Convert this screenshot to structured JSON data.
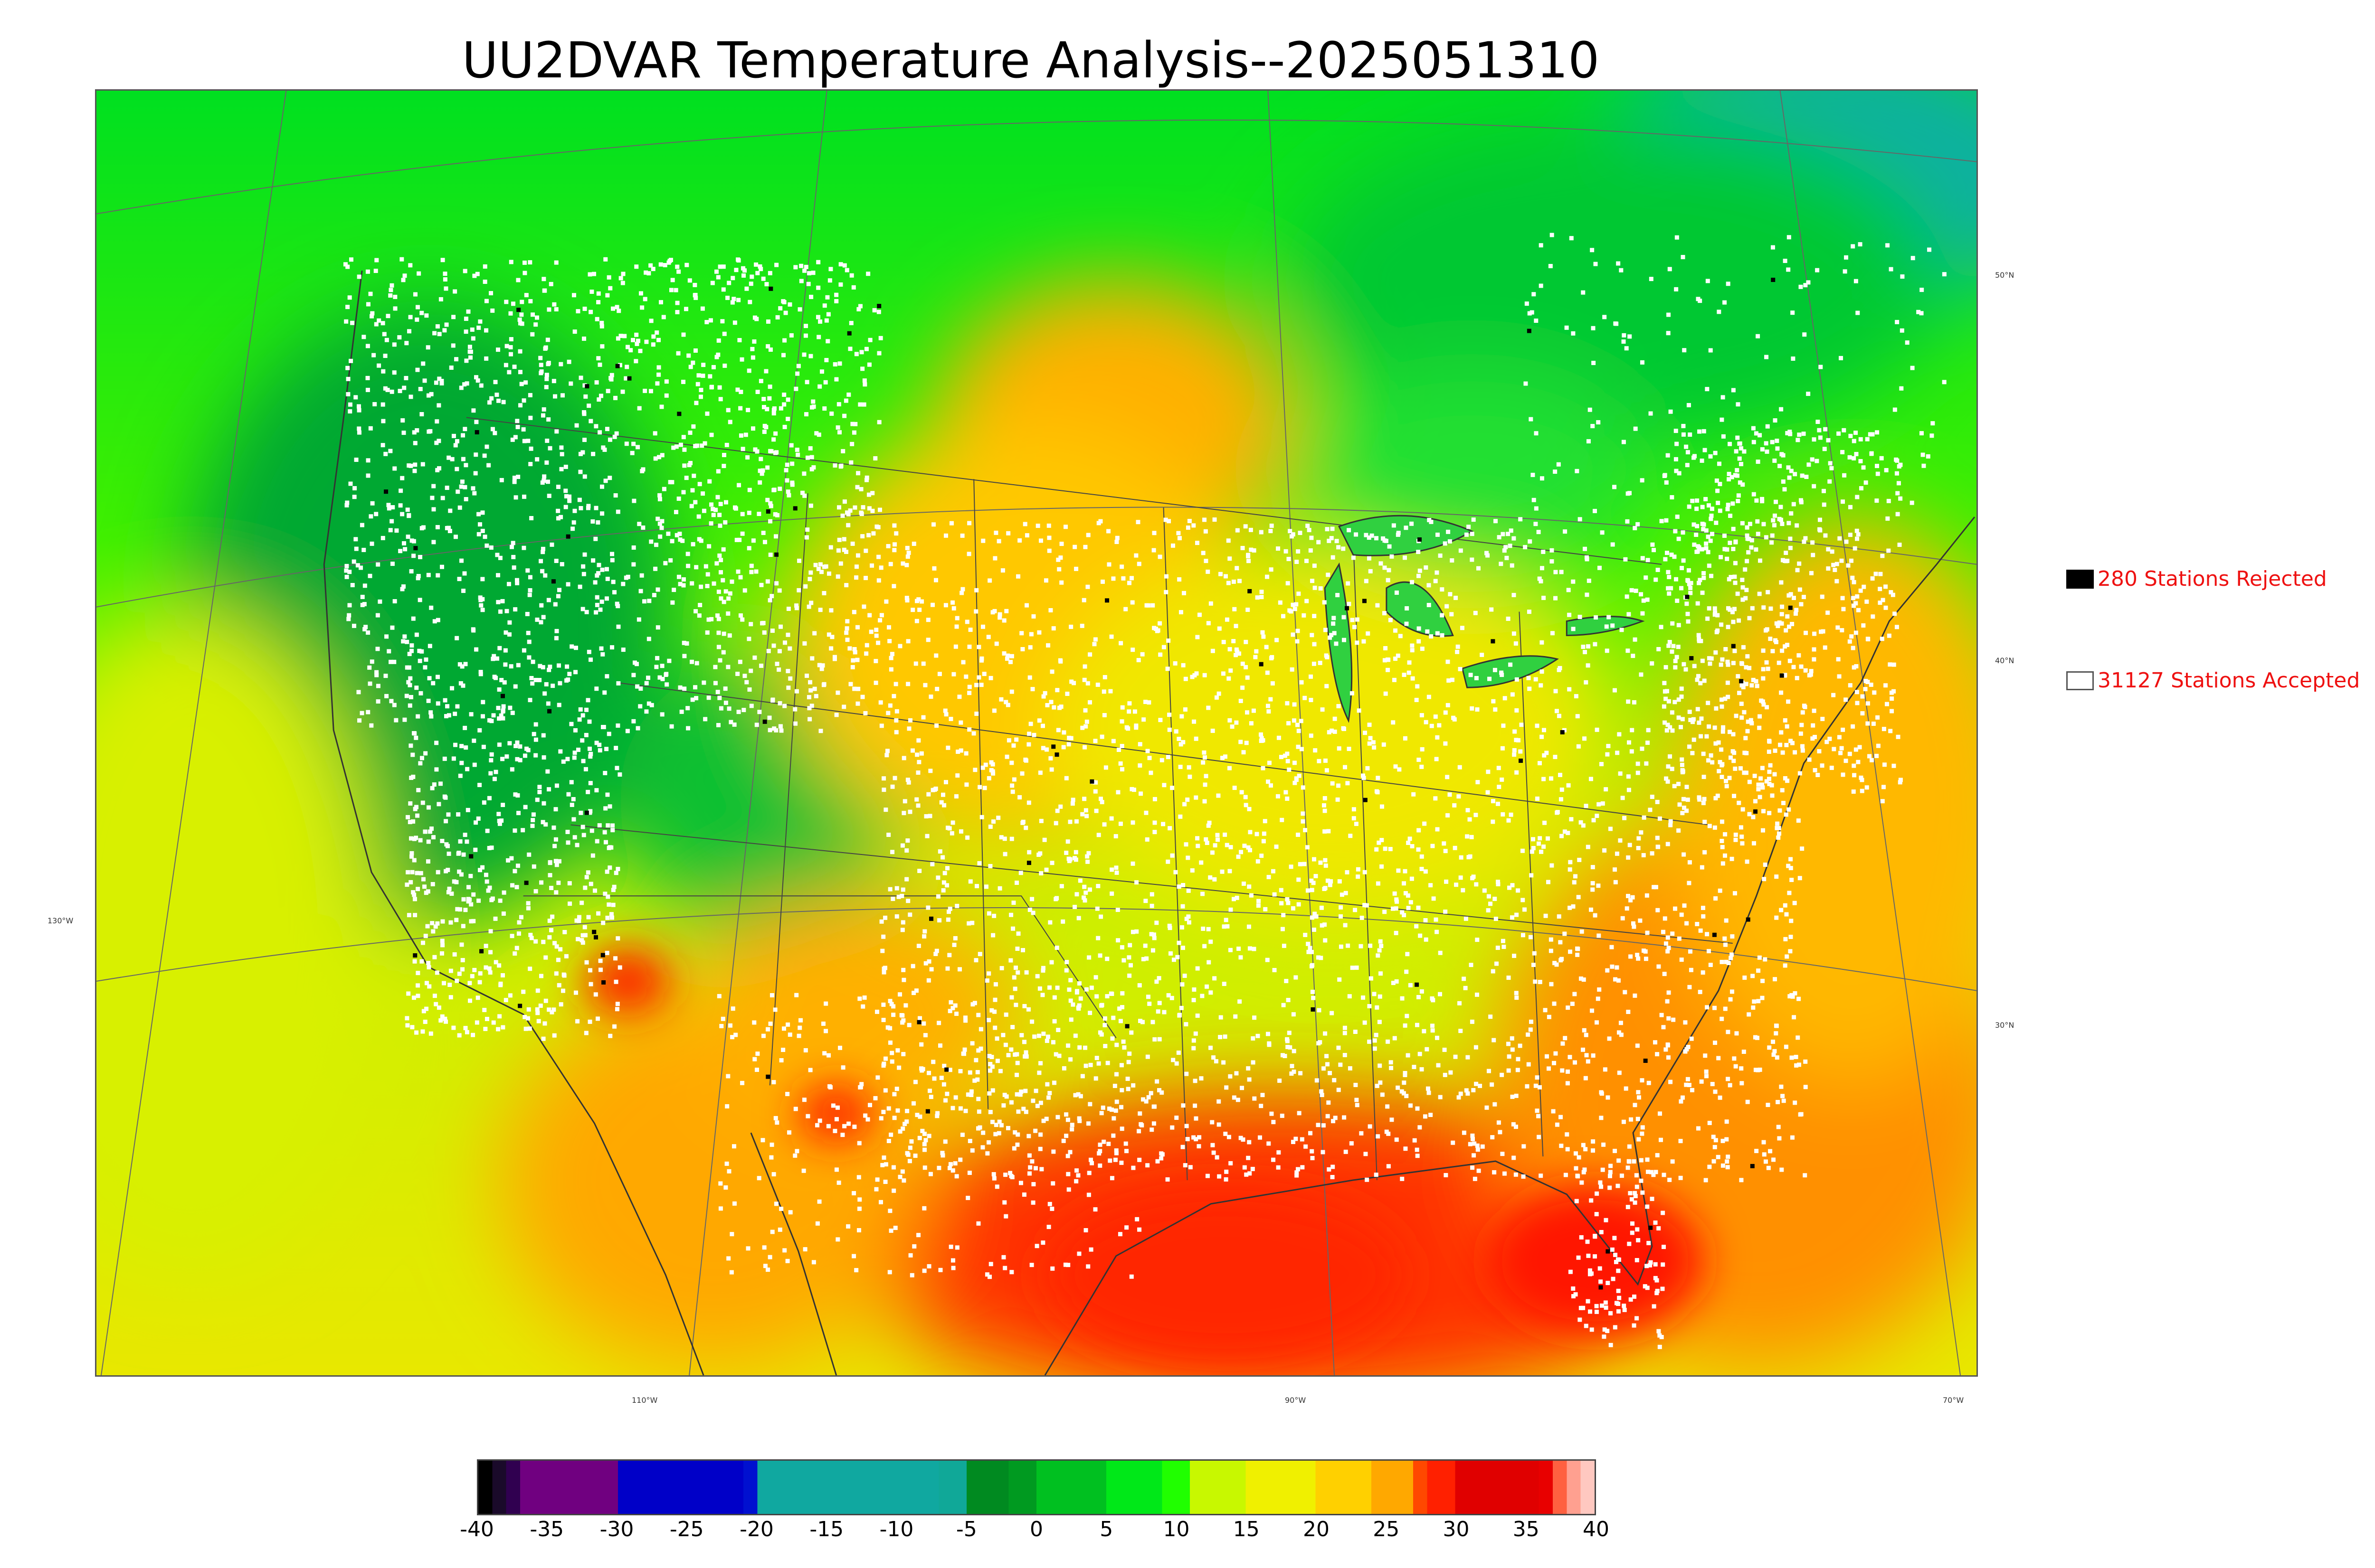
{
  "title": "UU2DVAR Temperature Analysis--2025051310",
  "map": {
    "graticule_labels": {
      "lat": [
        "50°N",
        "40°N",
        "30°N"
      ],
      "lon": [
        "130°W",
        "110°W",
        "90°W",
        "70°W"
      ]
    },
    "colors": {
      "cold_deep": "#009a28",
      "cool": "#00e020",
      "mild": "#c8f000",
      "warm": "#ffc000",
      "hot": "#ff5000",
      "very_hot": "#ff2000",
      "teal": "#10b0a0",
      "station_accepted": "#ffffff",
      "station_rejected": "#000000"
    }
  },
  "legend": {
    "rejected_label": "280 Stations Rejected",
    "accepted_label": "31127 Stations Accepted",
    "rejected_color": "#000000",
    "accepted_color": "#ffffff",
    "label_color": "#ee1111"
  },
  "colorbar": {
    "ticks": [
      "-40",
      "-35",
      "-30",
      "-25",
      "-20",
      "-15",
      "-10",
      "-5",
      "0",
      "5",
      "10",
      "15",
      "20",
      "25",
      "30",
      "35",
      "40"
    ],
    "min": -40,
    "max": 40,
    "stops": [
      {
        "v": -40,
        "c": "#000000"
      },
      {
        "v": -39,
        "c": "#1a0a2a"
      },
      {
        "v": -38,
        "c": "#300050"
      },
      {
        "v": -37,
        "c": "#700080"
      },
      {
        "v": -31,
        "c": "#700080"
      },
      {
        "v": -30,
        "c": "#0000c8"
      },
      {
        "v": -21,
        "c": "#0010d0"
      },
      {
        "v": -20,
        "c": "#10a8a0"
      },
      {
        "v": -7,
        "c": "#10a898"
      },
      {
        "v": -5,
        "c": "#008a20"
      },
      {
        "v": -2,
        "c": "#009a20"
      },
      {
        "v": 0,
        "c": "#00c020"
      },
      {
        "v": 5,
        "c": "#00e818"
      },
      {
        "v": 9,
        "c": "#20ff00"
      },
      {
        "v": 11,
        "c": "#c8f800"
      },
      {
        "v": 15,
        "c": "#f0f000"
      },
      {
        "v": 20,
        "c": "#ffd000"
      },
      {
        "v": 24,
        "c": "#ffa800"
      },
      {
        "v": 27,
        "c": "#ff4800"
      },
      {
        "v": 28,
        "c": "#ff2000"
      },
      {
        "v": 30,
        "c": "#e00000"
      },
      {
        "v": 36,
        "c": "#e80000"
      },
      {
        "v": 37,
        "c": "#ff6040"
      },
      {
        "v": 38,
        "c": "#ffa090"
      },
      {
        "v": 39,
        "c": "#ffc8c0"
      },
      {
        "v": 40,
        "c": "#d0d0d0"
      }
    ]
  }
}
